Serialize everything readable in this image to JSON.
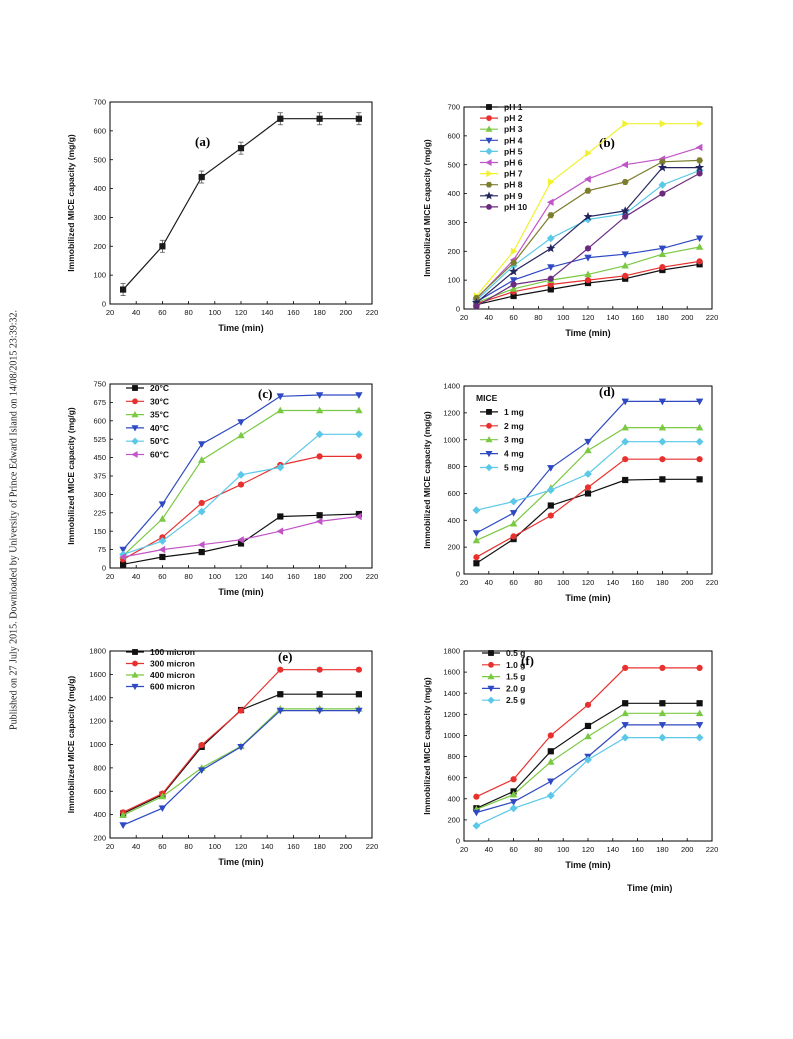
{
  "side_stamp": "Published on 27 July 2015. Downloaded by University of Prince Edward Island on 14/08/2015 23:39:32.",
  "extra_xlabel": "Time (min)",
  "chart_data": [
    {
      "type": "line",
      "panel_label": "(a)",
      "xlabel": "Time (min)",
      "ylabel": "Immobilized MICE capacity (mg/g)",
      "xlim": [
        20,
        220
      ],
      "ylim": [
        0,
        700
      ],
      "xticks": [
        20,
        40,
        60,
        80,
        100,
        120,
        140,
        160,
        180,
        200,
        220
      ],
      "yticks": [
        0,
        100,
        200,
        300,
        400,
        500,
        600,
        700
      ],
      "x": [
        30,
        60,
        90,
        120,
        150,
        180,
        210
      ],
      "legend_title": "",
      "series": [
        {
          "name": "",
          "color": "#1a1a1a",
          "marker": "square",
          "values": [
            50,
            200,
            440,
            540,
            642,
            642,
            642
          ]
        }
      ]
    },
    {
      "type": "line",
      "panel_label": "(b)",
      "xlabel": "Time (min)",
      "ylabel": "Immobilized MICE capacity (mg/g)",
      "xlim": [
        20,
        220
      ],
      "ylim": [
        0,
        700
      ],
      "xticks": [
        20,
        40,
        60,
        80,
        100,
        120,
        140,
        160,
        180,
        200,
        220
      ],
      "yticks": [
        0,
        100,
        200,
        300,
        400,
        500,
        600,
        700
      ],
      "x": [
        30,
        60,
        90,
        120,
        150,
        180,
        210
      ],
      "legend_title": "",
      "series": [
        {
          "name": "pH 1",
          "color": "#111111",
          "marker": "square",
          "values": [
            15,
            45,
            68,
            90,
            105,
            135,
            155
          ]
        },
        {
          "name": "pH 2",
          "color": "#e8312f",
          "marker": "circle",
          "values": [
            18,
            60,
            85,
            100,
            115,
            145,
            165
          ]
        },
        {
          "name": "pH 3",
          "color": "#7ac943",
          "marker": "triangle-up",
          "values": [
            22,
            70,
            100,
            120,
            150,
            190,
            215
          ]
        },
        {
          "name": "pH 4",
          "color": "#2e49c2",
          "marker": "triangle-down",
          "values": [
            25,
            100,
            145,
            178,
            190,
            210,
            245
          ]
        },
        {
          "name": "pH 5",
          "color": "#5bc8e8",
          "marker": "diamond",
          "values": [
            30,
            150,
            245,
            310,
            330,
            430,
            480
          ]
        },
        {
          "name": "pH 6",
          "color": "#c155c8",
          "marker": "triangle-left",
          "values": [
            35,
            170,
            370,
            450,
            500,
            520,
            560
          ]
        },
        {
          "name": "pH 7",
          "color": "#f1f12e",
          "marker": "triangle-right",
          "values": [
            45,
            200,
            440,
            540,
            642,
            642,
            642
          ]
        },
        {
          "name": "pH 8",
          "color": "#7d7d2e",
          "marker": "hexagon",
          "values": [
            38,
            160,
            325,
            410,
            440,
            510,
            515
          ]
        },
        {
          "name": "pH 9",
          "color": "#24245e",
          "marker": "star",
          "values": [
            22,
            130,
            210,
            320,
            340,
            490,
            490
          ]
        },
        {
          "name": "pH 10",
          "color": "#6b2a7d",
          "marker": "circle",
          "values": [
            10,
            85,
            105,
            210,
            320,
            400,
            470
          ]
        }
      ]
    },
    {
      "type": "line",
      "panel_label": "(c)",
      "xlabel": "Time (min)",
      "ylabel": "Immobilized MICE capacity (mg/g)",
      "xlim": [
        20,
        220
      ],
      "ylim": [
        0,
        750
      ],
      "xticks": [
        20,
        40,
        60,
        80,
        100,
        120,
        140,
        160,
        180,
        200,
        220
      ],
      "yticks": [
        0,
        75,
        150,
        225,
        300,
        375,
        450,
        525,
        600,
        675,
        750
      ],
      "x": [
        30,
        60,
        90,
        120,
        150,
        180,
        210
      ],
      "legend_title": "",
      "series": [
        {
          "name": "20°C",
          "color": "#111111",
          "marker": "square",
          "values": [
            15,
            45,
            65,
            100,
            210,
            215,
            220
          ]
        },
        {
          "name": "30°C",
          "color": "#e8312f",
          "marker": "circle",
          "values": [
            35,
            125,
            265,
            340,
            420,
            455,
            455
          ]
        },
        {
          "name": "35°C",
          "color": "#7ac943",
          "marker": "triangle-up",
          "values": [
            50,
            200,
            440,
            540,
            642,
            642,
            642
          ]
        },
        {
          "name": "40°C",
          "color": "#2e49c2",
          "marker": "triangle-down",
          "values": [
            75,
            260,
            505,
            595,
            700,
            705,
            705
          ]
        },
        {
          "name": "50°C",
          "color": "#5bc8e8",
          "marker": "diamond",
          "values": [
            55,
            110,
            230,
            380,
            410,
            545,
            545
          ]
        },
        {
          "name": "60°C",
          "color": "#c155c8",
          "marker": "triangle-left",
          "values": [
            45,
            75,
            95,
            115,
            150,
            190,
            210
          ]
        }
      ]
    },
    {
      "type": "line",
      "panel_label": "(d)",
      "xlabel": "Time (min)",
      "ylabel": "Immobilized MICE capacity (mg/g)",
      "xlim": [
        20,
        220
      ],
      "ylim": [
        0,
        1400
      ],
      "xticks": [
        20,
        40,
        60,
        80,
        100,
        120,
        140,
        160,
        180,
        200,
        220
      ],
      "yticks": [
        0,
        200,
        400,
        600,
        800,
        1000,
        1200,
        1400
      ],
      "x": [
        30,
        60,
        90,
        120,
        150,
        180,
        210
      ],
      "legend_title": "MICE",
      "series": [
        {
          "name": "1 mg",
          "color": "#111111",
          "marker": "square",
          "values": [
            80,
            260,
            510,
            600,
            700,
            705,
            705
          ]
        },
        {
          "name": "2 mg",
          "color": "#e8312f",
          "marker": "circle",
          "values": [
            125,
            280,
            435,
            645,
            855,
            855,
            855
          ]
        },
        {
          "name": "3 mg",
          "color": "#7ac943",
          "marker": "triangle-up",
          "values": [
            250,
            375,
            640,
            920,
            1090,
            1090,
            1090
          ]
        },
        {
          "name": "4 mg",
          "color": "#2e49c2",
          "marker": "triangle-down",
          "values": [
            305,
            455,
            790,
            985,
            1285,
            1285,
            1285
          ]
        },
        {
          "name": "5 mg",
          "color": "#5bc8e8",
          "marker": "diamond",
          "values": [
            475,
            540,
            625,
            745,
            985,
            985,
            985
          ]
        }
      ]
    },
    {
      "type": "line",
      "panel_label": "(e)",
      "xlabel": "Time (min)",
      "ylabel": "Immobilized MICE capacity (mg/g)",
      "xlim": [
        20,
        220
      ],
      "ylim": [
        200,
        1800
      ],
      "xticks": [
        20,
        40,
        60,
        80,
        100,
        120,
        140,
        160,
        180,
        200,
        220
      ],
      "yticks": [
        200,
        400,
        600,
        800,
        1000,
        1200,
        1400,
        1600,
        1800
      ],
      "x": [
        30,
        60,
        90,
        120,
        150,
        180,
        210
      ],
      "legend_title": "",
      "series": [
        {
          "name": "100 micron",
          "color": "#111111",
          "marker": "square",
          "values": [
            410,
            570,
            980,
            1295,
            1430,
            1430,
            1430
          ]
        },
        {
          "name": "300 micron",
          "color": "#e8312f",
          "marker": "circle",
          "values": [
            420,
            580,
            995,
            1290,
            1640,
            1640,
            1640
          ]
        },
        {
          "name": "400 micron",
          "color": "#7ac943",
          "marker": "triangle-up",
          "values": [
            395,
            555,
            800,
            985,
            1305,
            1305,
            1305
          ]
        },
        {
          "name": "600 micron",
          "color": "#2e49c2",
          "marker": "triangle-down",
          "values": [
            310,
            455,
            780,
            980,
            1290,
            1290,
            1290
          ]
        }
      ]
    },
    {
      "type": "line",
      "panel_label": "(f)",
      "xlabel": "Time (min)",
      "ylabel": "Immobilized MICE capacity (mg/g)",
      "xlim": [
        20,
        220
      ],
      "ylim": [
        0,
        1800
      ],
      "xticks": [
        20,
        40,
        60,
        80,
        100,
        120,
        140,
        160,
        180,
        200,
        220
      ],
      "yticks": [
        0,
        200,
        400,
        600,
        800,
        1000,
        1200,
        1400,
        1600,
        1800
      ],
      "x": [
        30,
        60,
        90,
        120,
        150,
        180,
        210
      ],
      "legend_title": "",
      "series": [
        {
          "name": "0.5 g",
          "color": "#111111",
          "marker": "square",
          "values": [
            310,
            470,
            850,
            1090,
            1305,
            1305,
            1305
          ]
        },
        {
          "name": "1.0 g",
          "color": "#e8312f",
          "marker": "circle",
          "values": [
            420,
            585,
            1000,
            1290,
            1640,
            1640,
            1640
          ]
        },
        {
          "name": "1.5 g",
          "color": "#7ac943",
          "marker": "triangle-up",
          "values": [
            300,
            440,
            750,
            990,
            1210,
            1210,
            1210
          ]
        },
        {
          "name": "2.0 g",
          "color": "#2e49c2",
          "marker": "triangle-down",
          "values": [
            270,
            370,
            565,
            800,
            1100,
            1100,
            1100
          ]
        },
        {
          "name": "2.5 g",
          "color": "#5bc8e8",
          "marker": "diamond",
          "values": [
            145,
            310,
            430,
            770,
            980,
            980,
            980
          ]
        }
      ]
    }
  ]
}
